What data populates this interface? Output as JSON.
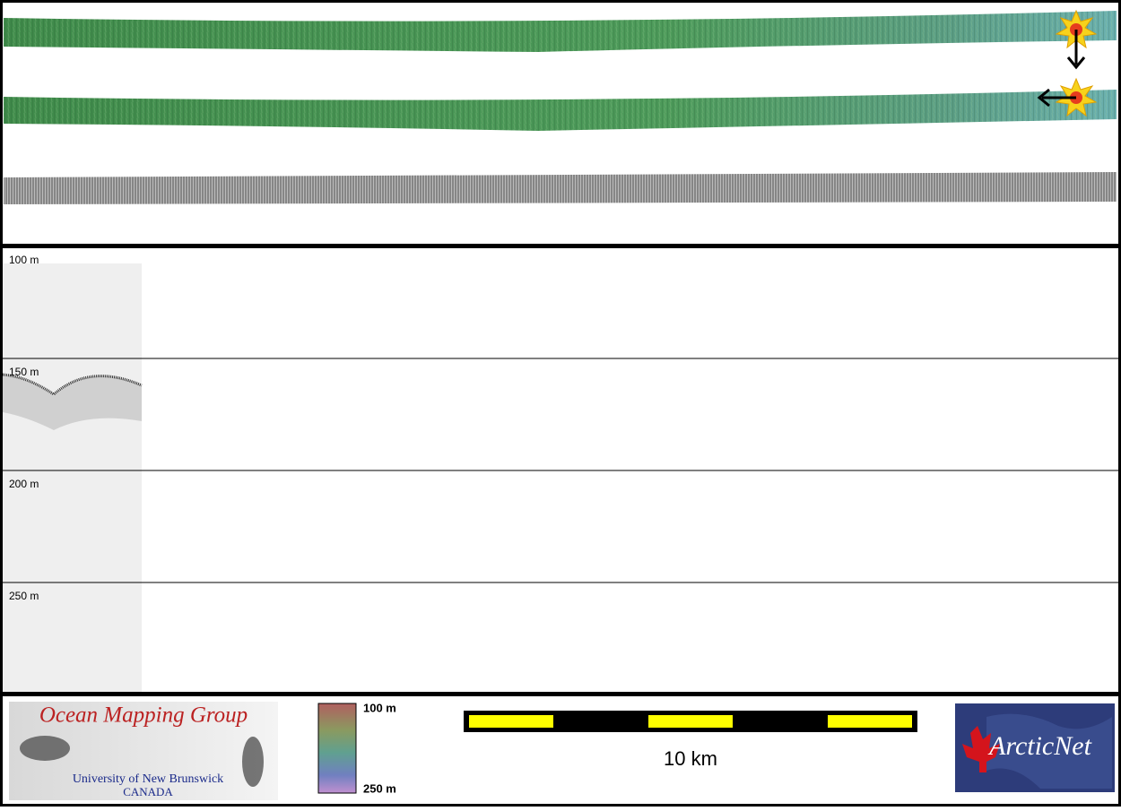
{
  "depth_axis": {
    "labels": [
      "100 m",
      "150 m",
      "200 m",
      "250 m"
    ]
  },
  "color_scale": {
    "top_label": "100 m",
    "bottom_label": "250 m"
  },
  "scale_bar": {
    "label": "10 km"
  },
  "logos": {
    "ocean_mapping": {
      "title": "Ocean Mapping Group",
      "university": "University of New Brunswick",
      "country": "CANADA"
    },
    "arcticnet": {
      "name": "ArcticNet"
    }
  }
}
